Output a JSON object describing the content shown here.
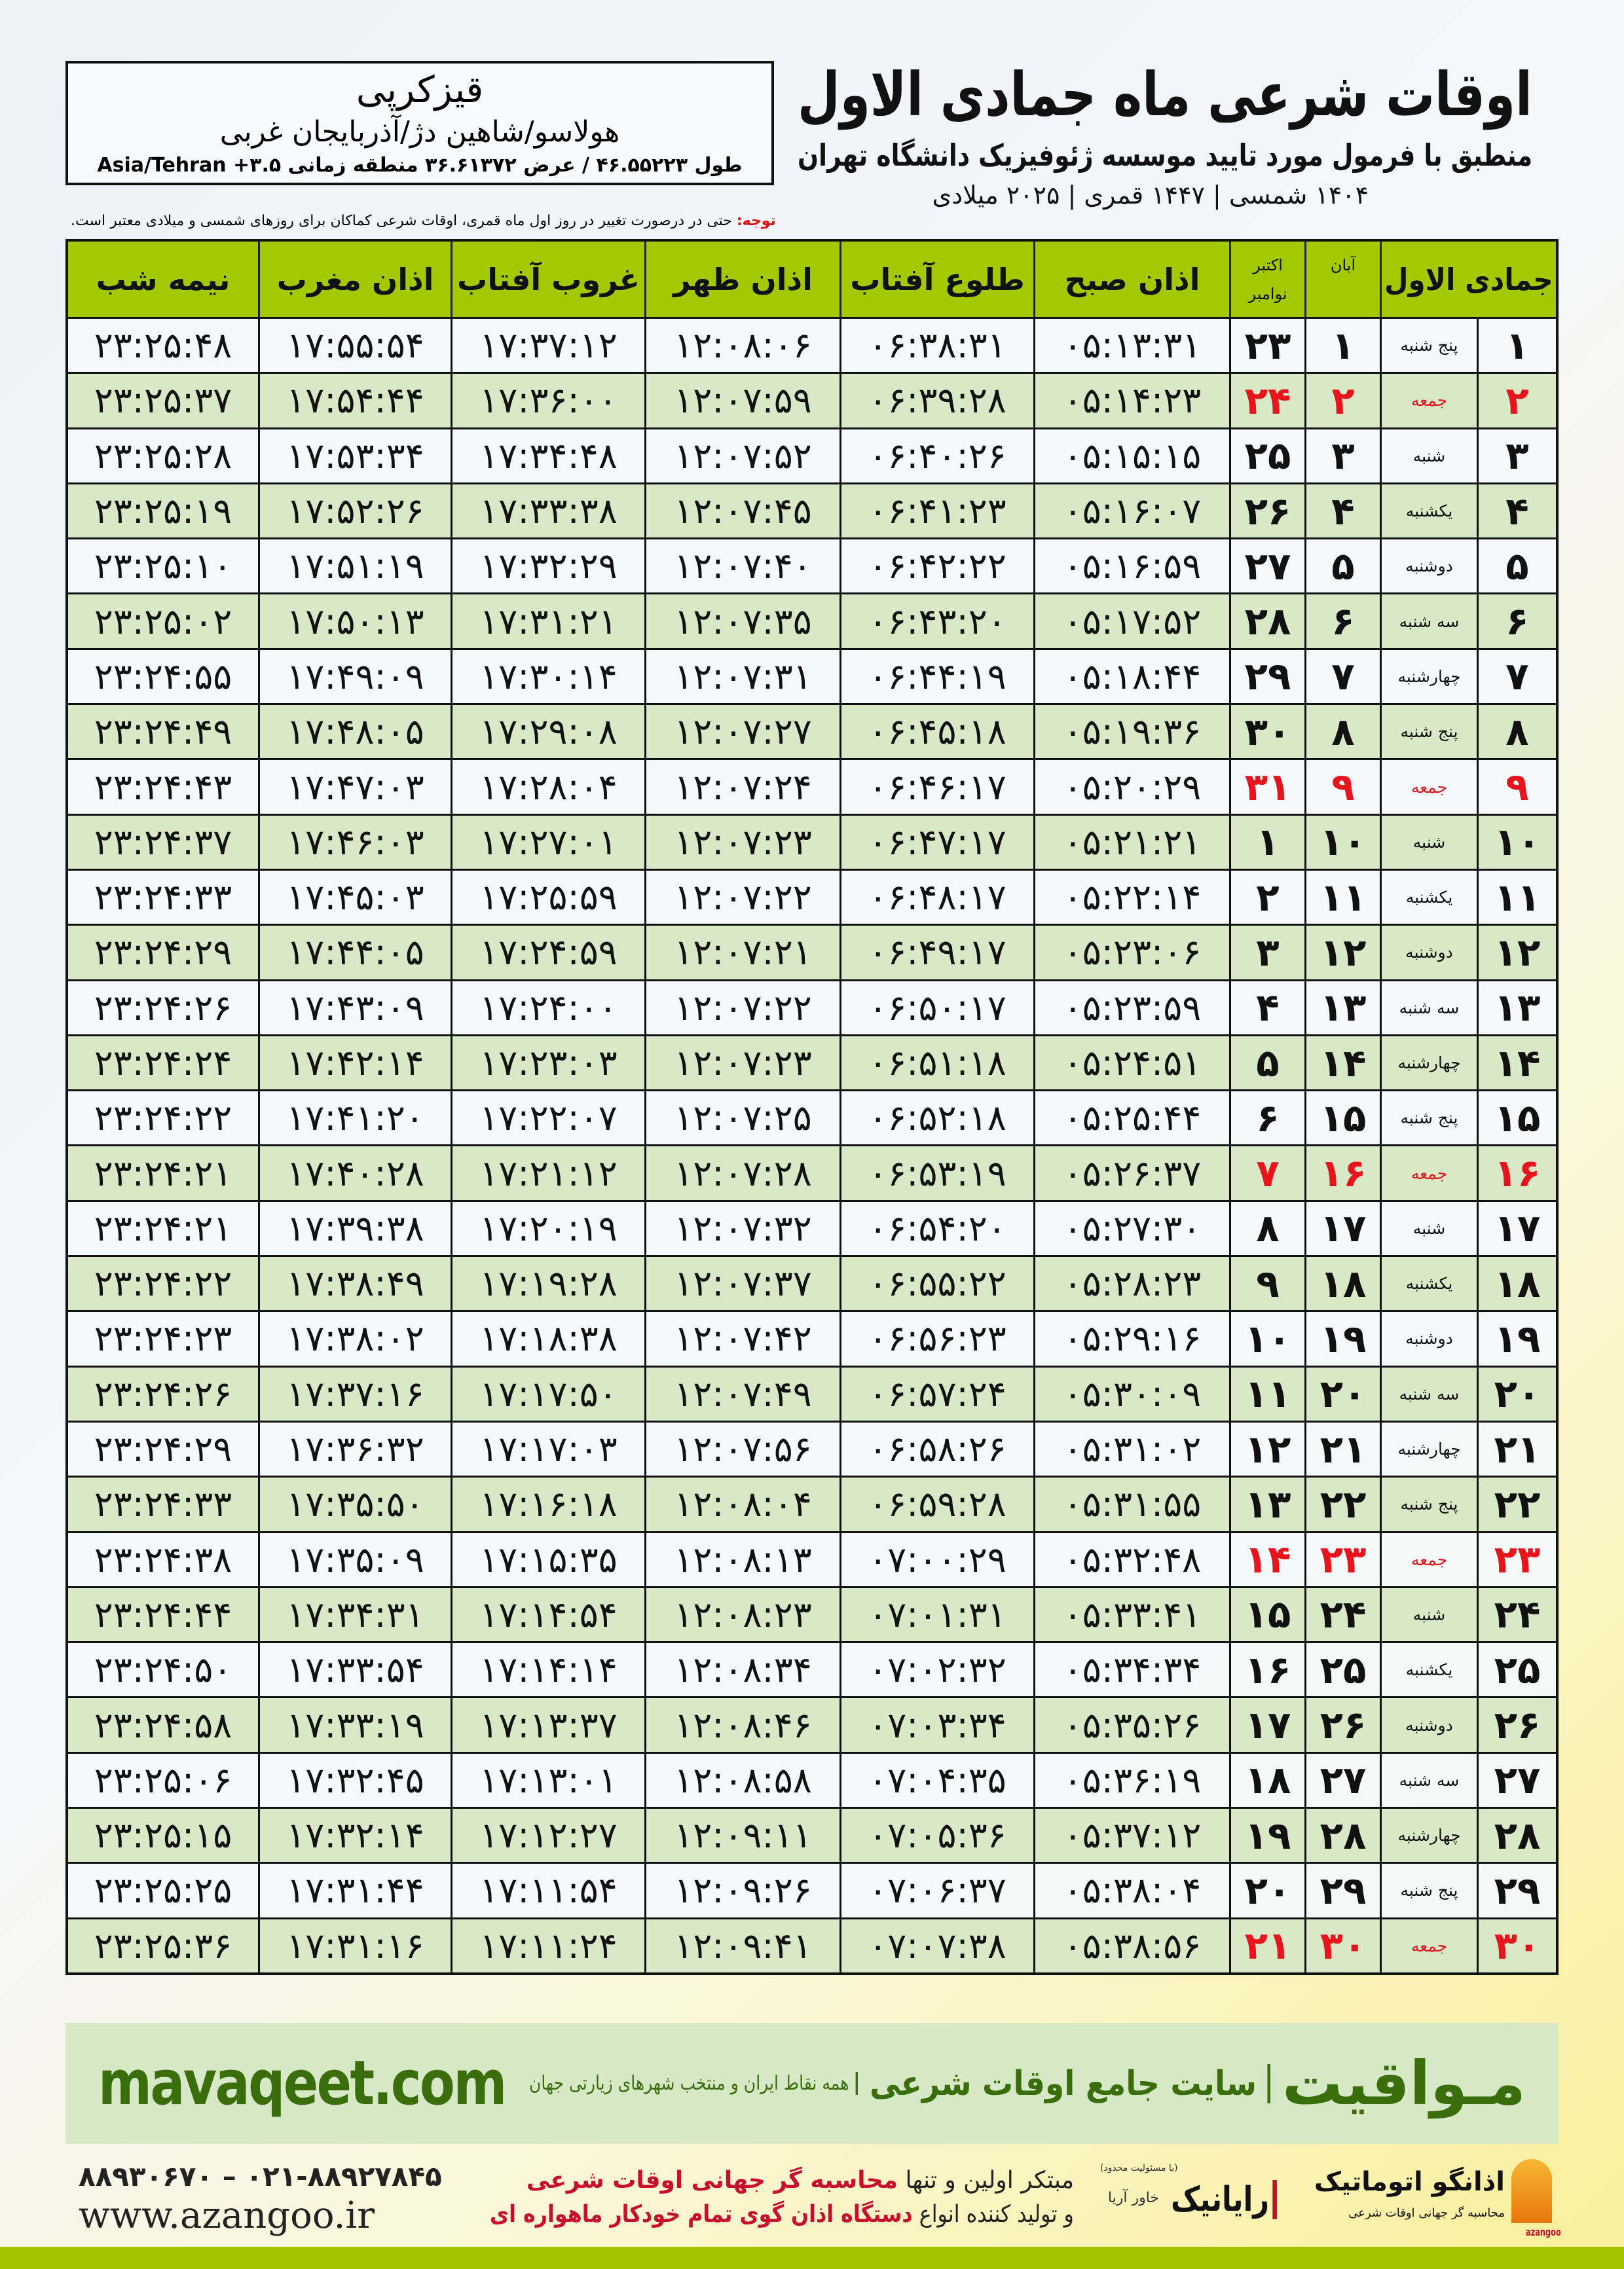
{
  "header": {
    "title": "اوقات شرعی ماه جمادی الاول",
    "subtitle": "منطبق با فرمول مورد تایید موسسه ژئوفیزیک دانشگاه تهران",
    "dateline": "۱۴۰۴ شمسی | ۱۴۴۷ قمری | ۲۰۲۵ میلادی"
  },
  "location": {
    "city": "قیزکرپی",
    "region": "هولاسو/شاهین دژ/آذربایجان غربی",
    "coords": "طول ۴۶.۵۵۲۲۳ / عرض ۳۶.۶۱۳۷۲ منطقه زمانی ۳.۵+ Asia/Tehran"
  },
  "note": {
    "label": "توجه:",
    "text": " حتی در درصورت تغییر در روز اول ماه قمری، اوقات شرعی کماکان برای روزهای شمسی و میلادی معتبر است."
  },
  "colors": {
    "header_green": "#a6c800",
    "row_green": "#d9e8c7",
    "holiday_red": "#e8141c",
    "brand_green": "#3a6e0c"
  },
  "table": {
    "headers": {
      "lunar": "جمادی الاول",
      "solar": "آبان",
      "greg1": "اکتبر",
      "greg2": "نوامبر",
      "fajr": "اذان صبح",
      "sunrise": "طلوع آفتاب",
      "dhuhr": "اذان ظهر",
      "sunset": "غروب آفتاب",
      "maghrib": "اذان مغرب",
      "midnight": "نیمه شب"
    },
    "holiday_weekday": "جمعه",
    "rows": [
      [
        "۱",
        "پنج شنبه",
        "۱",
        "۲۳",
        "۰۵:۱۳:۳۱",
        "۰۶:۳۸:۳۱",
        "۱۲:۰۸:۰۶",
        "۱۷:۳۷:۱۲",
        "۱۷:۵۵:۵۴",
        "۲۳:۲۵:۴۸"
      ],
      [
        "۲",
        "جمعه",
        "۲",
        "۲۴",
        "۰۵:۱۴:۲۳",
        "۰۶:۳۹:۲۸",
        "۱۲:۰۷:۵۹",
        "۱۷:۳۶:۰۰",
        "۱۷:۵۴:۴۴",
        "۲۳:۲۵:۳۷"
      ],
      [
        "۳",
        "شنبه",
        "۳",
        "۲۵",
        "۰۵:۱۵:۱۵",
        "۰۶:۴۰:۲۶",
        "۱۲:۰۷:۵۲",
        "۱۷:۳۴:۴۸",
        "۱۷:۵۳:۳۴",
        "۲۳:۲۵:۲۸"
      ],
      [
        "۴",
        "یکشنبه",
        "۴",
        "۲۶",
        "۰۵:۱۶:۰۷",
        "۰۶:۴۱:۲۳",
        "۱۲:۰۷:۴۵",
        "۱۷:۳۳:۳۸",
        "۱۷:۵۲:۲۶",
        "۲۳:۲۵:۱۹"
      ],
      [
        "۵",
        "دوشنبه",
        "۵",
        "۲۷",
        "۰۵:۱۶:۵۹",
        "۰۶:۴۲:۲۲",
        "۱۲:۰۷:۴۰",
        "۱۷:۳۲:۲۹",
        "۱۷:۵۱:۱۹",
        "۲۳:۲۵:۱۰"
      ],
      [
        "۶",
        "سه شنبه",
        "۶",
        "۲۸",
        "۰۵:۱۷:۵۲",
        "۰۶:۴۳:۲۰",
        "۱۲:۰۷:۳۵",
        "۱۷:۳۱:۲۱",
        "۱۷:۵۰:۱۳",
        "۲۳:۲۵:۰۲"
      ],
      [
        "۷",
        "چهارشنبه",
        "۷",
        "۲۹",
        "۰۵:۱۸:۴۴",
        "۰۶:۴۴:۱۹",
        "۱۲:۰۷:۳۱",
        "۱۷:۳۰:۱۴",
        "۱۷:۴۹:۰۹",
        "۲۳:۲۴:۵۵"
      ],
      [
        "۸",
        "پنج شنبه",
        "۸",
        "۳۰",
        "۰۵:۱۹:۳۶",
        "۰۶:۴۵:۱۸",
        "۱۲:۰۷:۲۷",
        "۱۷:۲۹:۰۸",
        "۱۷:۴۸:۰۵",
        "۲۳:۲۴:۴۹"
      ],
      [
        "۹",
        "جمعه",
        "۹",
        "۳۱",
        "۰۵:۲۰:۲۹",
        "۰۶:۴۶:۱۷",
        "۱۲:۰۷:۲۴",
        "۱۷:۲۸:۰۴",
        "۱۷:۴۷:۰۳",
        "۲۳:۲۴:۴۳"
      ],
      [
        "۱۰",
        "شنبه",
        "۱۰",
        "۱",
        "۰۵:۲۱:۲۱",
        "۰۶:۴۷:۱۷",
        "۱۲:۰۷:۲۳",
        "۱۷:۲۷:۰۱",
        "۱۷:۴۶:۰۳",
        "۲۳:۲۴:۳۷"
      ],
      [
        "۱۱",
        "یکشنبه",
        "۱۱",
        "۲",
        "۰۵:۲۲:۱۴",
        "۰۶:۴۸:۱۷",
        "۱۲:۰۷:۲۲",
        "۱۷:۲۵:۵۹",
        "۱۷:۴۵:۰۳",
        "۲۳:۲۴:۳۳"
      ],
      [
        "۱۲",
        "دوشنبه",
        "۱۲",
        "۳",
        "۰۵:۲۳:۰۶",
        "۰۶:۴۹:۱۷",
        "۱۲:۰۷:۲۱",
        "۱۷:۲۴:۵۹",
        "۱۷:۴۴:۰۵",
        "۲۳:۲۴:۲۹"
      ],
      [
        "۱۳",
        "سه شنبه",
        "۱۳",
        "۴",
        "۰۵:۲۳:۵۹",
        "۰۶:۵۰:۱۷",
        "۱۲:۰۷:۲۲",
        "۱۷:۲۴:۰۰",
        "۱۷:۴۳:۰۹",
        "۲۳:۲۴:۲۶"
      ],
      [
        "۱۴",
        "چهارشنبه",
        "۱۴",
        "۵",
        "۰۵:۲۴:۵۱",
        "۰۶:۵۱:۱۸",
        "۱۲:۰۷:۲۳",
        "۱۷:۲۳:۰۳",
        "۱۷:۴۲:۱۴",
        "۲۳:۲۴:۲۴"
      ],
      [
        "۱۵",
        "پنج شنبه",
        "۱۵",
        "۶",
        "۰۵:۲۵:۴۴",
        "۰۶:۵۲:۱۸",
        "۱۲:۰۷:۲۵",
        "۱۷:۲۲:۰۷",
        "۱۷:۴۱:۲۰",
        "۲۳:۲۴:۲۲"
      ],
      [
        "۱۶",
        "جمعه",
        "۱۶",
        "۷",
        "۰۵:۲۶:۳۷",
        "۰۶:۵۳:۱۹",
        "۱۲:۰۷:۲۸",
        "۱۷:۲۱:۱۲",
        "۱۷:۴۰:۲۸",
        "۲۳:۲۴:۲۱"
      ],
      [
        "۱۷",
        "شنبه",
        "۱۷",
        "۸",
        "۰۵:۲۷:۳۰",
        "۰۶:۵۴:۲۰",
        "۱۲:۰۷:۳۲",
        "۱۷:۲۰:۱۹",
        "۱۷:۳۹:۳۸",
        "۲۳:۲۴:۲۱"
      ],
      [
        "۱۸",
        "یکشنبه",
        "۱۸",
        "۹",
        "۰۵:۲۸:۲۳",
        "۰۶:۵۵:۲۲",
        "۱۲:۰۷:۳۷",
        "۱۷:۱۹:۲۸",
        "۱۷:۳۸:۴۹",
        "۲۳:۲۴:۲۲"
      ],
      [
        "۱۹",
        "دوشنبه",
        "۱۹",
        "۱۰",
        "۰۵:۲۹:۱۶",
        "۰۶:۵۶:۲۳",
        "۱۲:۰۷:۴۲",
        "۱۷:۱۸:۳۸",
        "۱۷:۳۸:۰۲",
        "۲۳:۲۴:۲۳"
      ],
      [
        "۲۰",
        "سه شنبه",
        "۲۰",
        "۱۱",
        "۰۵:۳۰:۰۹",
        "۰۶:۵۷:۲۴",
        "۱۲:۰۷:۴۹",
        "۱۷:۱۷:۵۰",
        "۱۷:۳۷:۱۶",
        "۲۳:۲۴:۲۶"
      ],
      [
        "۲۱",
        "چهارشنبه",
        "۲۱",
        "۱۲",
        "۰۵:۳۱:۰۲",
        "۰۶:۵۸:۲۶",
        "۱۲:۰۷:۵۶",
        "۱۷:۱۷:۰۳",
        "۱۷:۳۶:۳۲",
        "۲۳:۲۴:۲۹"
      ],
      [
        "۲۲",
        "پنج شنبه",
        "۲۲",
        "۱۳",
        "۰۵:۳۱:۵۵",
        "۰۶:۵۹:۲۸",
        "۱۲:۰۸:۰۴",
        "۱۷:۱۶:۱۸",
        "۱۷:۳۵:۵۰",
        "۲۳:۲۴:۳۳"
      ],
      [
        "۲۳",
        "جمعه",
        "۲۳",
        "۱۴",
        "۰۵:۳۲:۴۸",
        "۰۷:۰۰:۲۹",
        "۱۲:۰۸:۱۳",
        "۱۷:۱۵:۳۵",
        "۱۷:۳۵:۰۹",
        "۲۳:۲۴:۳۸"
      ],
      [
        "۲۴",
        "شنبه",
        "۲۴",
        "۱۵",
        "۰۵:۳۳:۴۱",
        "۰۷:۰۱:۳۱",
        "۱۲:۰۸:۲۳",
        "۱۷:۱۴:۵۴",
        "۱۷:۳۴:۳۱",
        "۲۳:۲۴:۴۴"
      ],
      [
        "۲۵",
        "یکشنبه",
        "۲۵",
        "۱۶",
        "۰۵:۳۴:۳۴",
        "۰۷:۰۲:۳۲",
        "۱۲:۰۸:۳۴",
        "۱۷:۱۴:۱۴",
        "۱۷:۳۳:۵۴",
        "۲۳:۲۴:۵۰"
      ],
      [
        "۲۶",
        "دوشنبه",
        "۲۶",
        "۱۷",
        "۰۵:۳۵:۲۶",
        "۰۷:۰۳:۳۴",
        "۱۲:۰۸:۴۶",
        "۱۷:۱۳:۳۷",
        "۱۷:۳۳:۱۹",
        "۲۳:۲۴:۵۸"
      ],
      [
        "۲۷",
        "سه شنبه",
        "۲۷",
        "۱۸",
        "۰۵:۳۶:۱۹",
        "۰۷:۰۴:۳۵",
        "۱۲:۰۸:۵۸",
        "۱۷:۱۳:۰۱",
        "۱۷:۳۲:۴۵",
        "۲۳:۲۵:۰۶"
      ],
      [
        "۲۸",
        "چهارشنبه",
        "۲۸",
        "۱۹",
        "۰۵:۳۷:۱۲",
        "۰۷:۰۵:۳۶",
        "۱۲:۰۹:۱۱",
        "۱۷:۱۲:۲۷",
        "۱۷:۳۲:۱۴",
        "۲۳:۲۵:۱۵"
      ],
      [
        "۲۹",
        "پنج شنبه",
        "۲۹",
        "۲۰",
        "۰۵:۳۸:۰۴",
        "۰۷:۰۶:۳۷",
        "۱۲:۰۹:۲۶",
        "۱۷:۱۱:۵۴",
        "۱۷:۳۱:۴۴",
        "۲۳:۲۵:۲۵"
      ],
      [
        "۳۰",
        "جمعه",
        "۳۰",
        "۲۱",
        "۰۵:۳۸:۵۶",
        "۰۷:۰۷:۳۸",
        "۱۲:۰۹:۴۱",
        "۱۷:۱۱:۲۴",
        "۱۷:۳۱:۱۶",
        "۲۳:۲۵:۳۶"
      ]
    ]
  },
  "banner": {
    "logo": "مـواقیت",
    "slogan": "سایت جامع اوقات شرعی",
    "sub": "همه نقاط ایران و منتخب شهرهای زیارتی جهان",
    "url": "mavaqeet.com"
  },
  "contact": {
    "phone": "۰۲۱-۸۸۹۲۷۸۴۵ – ۸۸۹۳۰۶۷۰",
    "web": "www.azangoo.ir",
    "line1a": "مبتکر اولین و تنها ",
    "line1b": "محاسبه گر جهانی اوقات شرعی",
    "line2a": "و تولید کننده انواع ",
    "line2b": "دستگاه اذان گوی تمام خودکار ماهواره ای"
  },
  "logos": {
    "rayanik": "رایانیک",
    "rayanik_sub": "خاور آریا",
    "rayanik_legal": "(با مسئولیت محدود)",
    "azangoo": "اذانگو اتوماتیک",
    "azangoo_latin": "azangoo",
    "azangoo_sub": "محاسبه گر جهانی اوقات شرعی"
  }
}
